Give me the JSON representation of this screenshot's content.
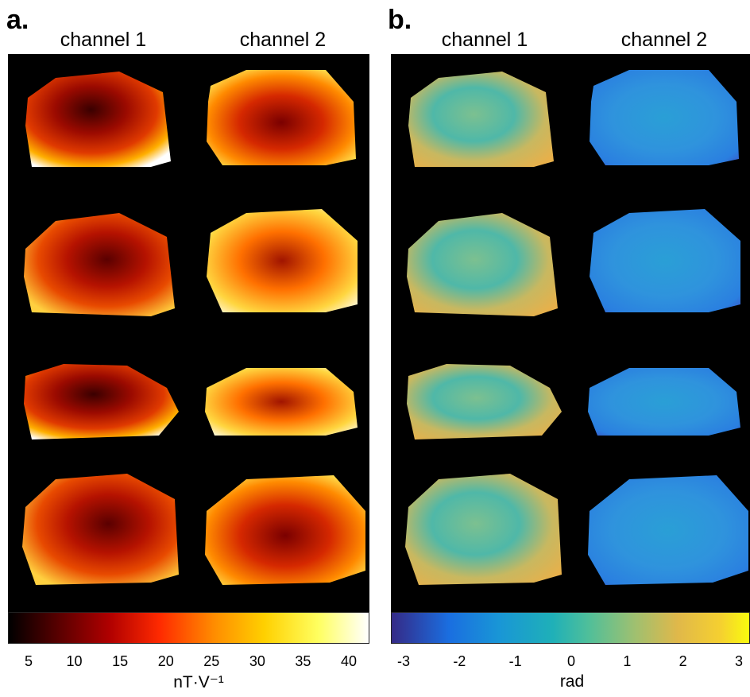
{
  "panel_a": {
    "label": "a.",
    "columns": [
      "channel 1",
      "channel 2"
    ],
    "colorbar": {
      "ticks": [
        "5",
        "10",
        "15",
        "20",
        "25",
        "30",
        "35",
        "40"
      ],
      "unit": "nT·V⁻¹",
      "colormap": "hot"
    }
  },
  "panel_b": {
    "label": "b.",
    "columns": [
      "channel 1",
      "channel 2"
    ],
    "colorbar": {
      "ticks": [
        "-3",
        "-2",
        "-1",
        "0",
        "1",
        "2",
        "3"
      ],
      "unit": "rad",
      "colormap": "parula"
    }
  },
  "colors": {
    "background": "#000000",
    "hot_dark": "#3a0000",
    "hot_red": "#c21a00",
    "hot_orange": "#ff7a00",
    "hot_yellow": "#ffe84a",
    "parula_teal": "#3fb3b0",
    "parula_blue": "#1f8fdc",
    "parula_orange": "#e8b84a"
  }
}
